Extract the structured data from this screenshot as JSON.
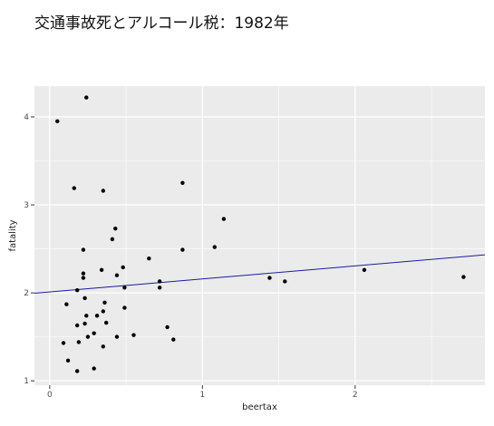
{
  "chart_data": {
    "type": "scatter",
    "title": "交通事故死とアルコール税：1982年",
    "xlabel": "beertax",
    "ylabel": "fatality",
    "xlim": [
      -0.1,
      2.85
    ],
    "ylim": [
      0.95,
      4.35
    ],
    "xticks": [
      0,
      1,
      2
    ],
    "yticks": [
      1,
      2,
      3,
      4
    ],
    "x_minor": [
      0.5,
      1.5,
      2.5
    ],
    "y_minor": [
      1.5,
      2.5,
      3.5
    ],
    "grid": true,
    "colors": {
      "panel": "#ebebeb",
      "grid": "#ffffff",
      "point": "#000000",
      "line": "#1a1aa8",
      "tick": "#4d4d4d"
    },
    "regression": {
      "intercept": 2.01,
      "slope": 0.148
    },
    "points": [
      {
        "x": 0.05,
        "y": 3.95
      },
      {
        "x": 0.24,
        "y": 4.22
      },
      {
        "x": 0.16,
        "y": 3.19
      },
      {
        "x": 0.35,
        "y": 3.16
      },
      {
        "x": 0.87,
        "y": 3.25
      },
      {
        "x": 1.14,
        "y": 2.84
      },
      {
        "x": 0.43,
        "y": 2.73
      },
      {
        "x": 0.41,
        "y": 2.61
      },
      {
        "x": 0.22,
        "y": 2.49
      },
      {
        "x": 0.87,
        "y": 2.49
      },
      {
        "x": 1.08,
        "y": 2.52
      },
      {
        "x": 0.65,
        "y": 2.39
      },
      {
        "x": 0.48,
        "y": 2.29
      },
      {
        "x": 0.34,
        "y": 2.26
      },
      {
        "x": 0.22,
        "y": 2.22
      },
      {
        "x": 0.22,
        "y": 2.17
      },
      {
        "x": 0.44,
        "y": 2.2
      },
      {
        "x": 0.72,
        "y": 2.13
      },
      {
        "x": 0.72,
        "y": 2.06
      },
      {
        "x": 0.49,
        "y": 2.06
      },
      {
        "x": 0.18,
        "y": 2.03
      },
      {
        "x": 0.23,
        "y": 1.94
      },
      {
        "x": 0.11,
        "y": 1.87
      },
      {
        "x": 0.36,
        "y": 1.89
      },
      {
        "x": 0.49,
        "y": 1.83
      },
      {
        "x": 0.35,
        "y": 1.79
      },
      {
        "x": 0.31,
        "y": 1.74
      },
      {
        "x": 0.24,
        "y": 1.74
      },
      {
        "x": 0.23,
        "y": 1.65
      },
      {
        "x": 0.18,
        "y": 1.63
      },
      {
        "x": 0.37,
        "y": 1.66
      },
      {
        "x": 0.77,
        "y": 1.61
      },
      {
        "x": 0.55,
        "y": 1.52
      },
      {
        "x": 0.29,
        "y": 1.54
      },
      {
        "x": 0.44,
        "y": 1.5
      },
      {
        "x": 0.25,
        "y": 1.5
      },
      {
        "x": 0.81,
        "y": 1.47
      },
      {
        "x": 0.19,
        "y": 1.44
      },
      {
        "x": 0.09,
        "y": 1.43
      },
      {
        "x": 0.35,
        "y": 1.39
      },
      {
        "x": 0.12,
        "y": 1.23
      },
      {
        "x": 0.29,
        "y": 1.14
      },
      {
        "x": 0.18,
        "y": 1.11
      },
      {
        "x": 1.44,
        "y": 2.17
      },
      {
        "x": 1.54,
        "y": 2.13
      },
      {
        "x": 2.06,
        "y": 2.26
      },
      {
        "x": 2.71,
        "y": 2.18
      }
    ]
  }
}
